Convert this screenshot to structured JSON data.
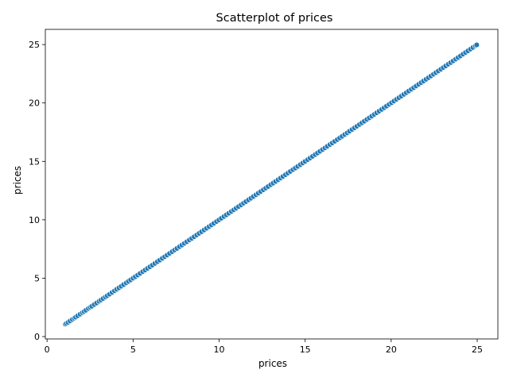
{
  "chart_data": {
    "type": "scatter",
    "title": "Scatterplot of prices",
    "xlabel": "prices",
    "ylabel": "prices",
    "xlim": [
      -0.1,
      26.2
    ],
    "ylim": [
      -0.2,
      26.3
    ],
    "x_ticks": [
      0,
      5,
      10,
      15,
      20,
      25
    ],
    "y_ticks": [
      0,
      5,
      10,
      15,
      20,
      25
    ],
    "grid": false,
    "legend": "none",
    "marker_color": "#1f77b4",
    "marker_edge_color": "#ffffff",
    "series": [
      {
        "x": [
          1.06,
          1.12,
          1.22,
          1.34,
          1.47,
          1.58,
          1.66,
          1.78,
          1.92,
          2.05,
          2.15,
          2.26,
          2.4,
          2.51,
          2.6,
          2.74,
          2.88,
          3.02,
          3.13,
          3.25,
          3.39,
          3.5,
          3.63,
          3.78,
          3.92,
          4.05,
          4.18,
          4.31,
          4.45,
          4.6,
          4.73,
          4.86,
          5.0,
          5.13,
          5.27,
          5.41,
          5.56,
          5.7,
          5.84,
          5.98,
          6.12,
          6.27,
          6.41,
          6.55,
          6.7,
          6.84,
          6.98,
          7.12,
          7.27,
          7.41,
          7.55,
          7.7,
          7.84,
          7.98,
          8.12,
          8.27,
          8.41,
          8.55,
          8.7,
          8.84,
          8.98,
          9.13,
          9.27,
          9.42,
          9.56,
          9.7,
          9.85,
          9.99,
          10.13,
          10.28,
          10.42,
          10.56,
          10.71,
          10.85,
          10.99,
          11.13,
          11.28,
          11.42,
          11.56,
          11.71,
          11.85,
          11.99,
          12.14,
          12.28,
          12.42,
          12.57,
          12.71,
          12.85,
          13.0,
          13.14,
          13.28,
          13.43,
          13.57,
          13.71,
          13.86,
          14.0,
          14.14,
          14.29,
          14.43,
          14.57,
          14.72,
          14.86,
          15.0,
          15.15,
          15.29,
          15.43,
          15.58,
          15.72,
          15.86,
          16.01,
          16.15,
          16.29,
          16.44,
          16.58,
          16.72,
          16.87,
          17.01,
          17.15,
          17.3,
          17.44,
          17.58,
          17.73,
          17.87,
          18.01,
          18.16,
          18.3,
          18.44,
          18.59,
          18.73,
          18.87,
          19.02,
          19.16,
          19.3,
          19.45,
          19.59,
          19.73,
          19.88,
          20.02,
          20.16,
          20.31,
          20.45,
          20.59,
          20.74,
          20.88,
          21.02,
          21.17,
          21.31,
          21.45,
          21.6,
          21.74,
          21.88,
          22.03,
          22.17,
          22.31,
          22.46,
          22.6,
          22.74,
          22.89,
          23.03,
          23.17,
          23.32,
          23.46,
          23.6,
          23.75,
          23.89,
          24.03,
          24.18,
          24.32,
          24.46,
          24.61,
          24.75,
          24.89,
          24.97
        ],
        "y": [
          1.06,
          1.12,
          1.22,
          1.34,
          1.47,
          1.58,
          1.66,
          1.78,
          1.92,
          2.05,
          2.15,
          2.26,
          2.4,
          2.51,
          2.6,
          2.74,
          2.88,
          3.02,
          3.13,
          3.25,
          3.39,
          3.5,
          3.63,
          3.78,
          3.92,
          4.05,
          4.18,
          4.31,
          4.45,
          4.6,
          4.73,
          4.86,
          5.0,
          5.13,
          5.27,
          5.41,
          5.56,
          5.7,
          5.84,
          5.98,
          6.12,
          6.27,
          6.41,
          6.55,
          6.7,
          6.84,
          6.98,
          7.12,
          7.27,
          7.41,
          7.55,
          7.7,
          7.84,
          7.98,
          8.12,
          8.27,
          8.41,
          8.55,
          8.7,
          8.84,
          8.98,
          9.13,
          9.27,
          9.42,
          9.56,
          9.7,
          9.85,
          9.99,
          10.13,
          10.28,
          10.42,
          10.56,
          10.71,
          10.85,
          10.99,
          11.13,
          11.28,
          11.42,
          11.56,
          11.71,
          11.85,
          11.99,
          12.14,
          12.28,
          12.42,
          12.57,
          12.71,
          12.85,
          13.0,
          13.14,
          13.28,
          13.43,
          13.57,
          13.71,
          13.86,
          14.0,
          14.14,
          14.29,
          14.43,
          14.57,
          14.72,
          14.86,
          15.0,
          15.15,
          15.29,
          15.43,
          15.58,
          15.72,
          15.86,
          16.01,
          16.15,
          16.29,
          16.44,
          16.58,
          16.72,
          16.87,
          17.01,
          17.15,
          17.3,
          17.44,
          17.58,
          17.73,
          17.87,
          18.01,
          18.16,
          18.3,
          18.44,
          18.59,
          18.73,
          18.87,
          19.02,
          19.16,
          19.3,
          19.45,
          19.59,
          19.73,
          19.88,
          20.02,
          20.16,
          20.31,
          20.45,
          20.59,
          20.74,
          20.88,
          21.02,
          21.17,
          21.31,
          21.45,
          21.6,
          21.74,
          21.88,
          22.03,
          22.17,
          22.31,
          22.46,
          22.6,
          22.74,
          22.89,
          23.03,
          23.17,
          23.32,
          23.46,
          23.6,
          23.75,
          23.89,
          24.03,
          24.18,
          24.32,
          24.46,
          24.61,
          24.75,
          24.89,
          24.97
        ]
      }
    ]
  }
}
